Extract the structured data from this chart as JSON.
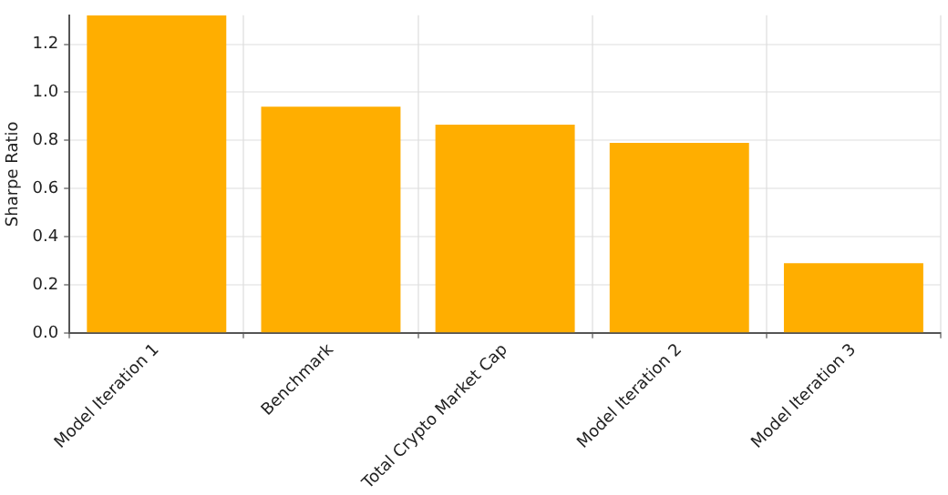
{
  "chart_data": {
    "type": "bar",
    "ylabel": "Sharpe Ratio",
    "categories": [
      "Model Iteration 1",
      "Benchmark",
      "Total Crypto Market Cap",
      "Model Iteration 2",
      "Model Iteration 3"
    ],
    "values": [
      1.32,
      0.94,
      0.865,
      0.79,
      0.29
    ],
    "color": "#ffae00",
    "ylim": [
      0,
      1.32
    ],
    "yticks": [
      {
        "value": 0,
        "label": "0.0"
      },
      {
        "value": 0.2,
        "label": "0.2"
      },
      {
        "value": 0.4,
        "label": "0.4"
      },
      {
        "value": 0.6,
        "label": "0.6"
      },
      {
        "value": 0.8,
        "label": "0.8"
      },
      {
        "value": 1,
        "label": "1.0"
      },
      {
        "value": 1.2,
        "label": "1.2"
      }
    ],
    "grid": true
  }
}
